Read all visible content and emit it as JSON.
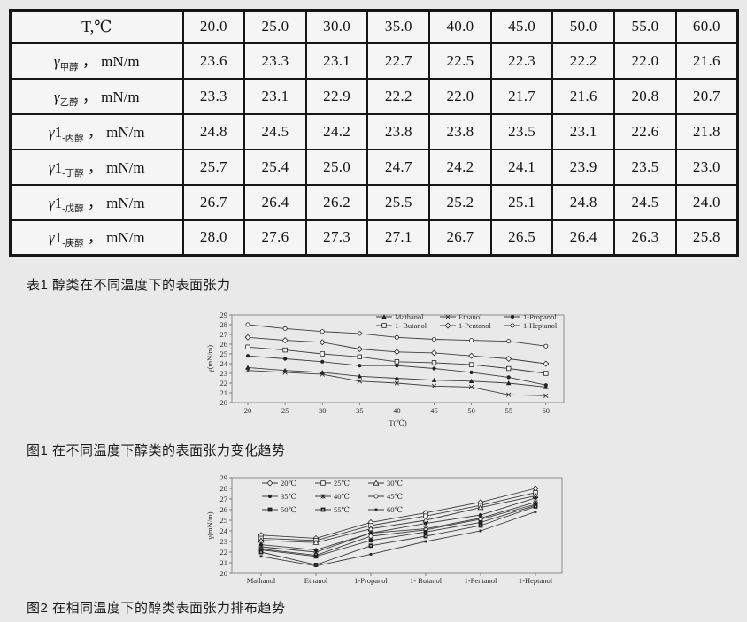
{
  "page": {
    "background": "#e9e9e9"
  },
  "table1": {
    "caption": "表1 醇类在不同温度下的表面张力",
    "header_label": "T,℃",
    "temperatures": [
      "20.0",
      "25.0",
      "30.0",
      "35.0",
      "40.0",
      "45.0",
      "50.0",
      "55.0",
      "60.0"
    ],
    "rows": [
      {
        "symbol": "γ",
        "sub": "甲醇",
        "separator": "，",
        "unit": "mN/m",
        "values": [
          "23.6",
          "23.3",
          "23.1",
          "22.7",
          "22.5",
          "22.3",
          "22.2",
          "22.0",
          "21.6"
        ]
      },
      {
        "symbol": "γ",
        "sub": "乙醇",
        "separator": "，",
        "unit": "mN/m",
        "values": [
          "23.3",
          "23.1",
          "22.9",
          "22.2",
          "22.0",
          "21.7",
          "21.6",
          "20.8",
          "20.7"
        ]
      },
      {
        "symbol": "γ1",
        "sub": "-丙醇",
        "separator": "，",
        "unit": "mN/m",
        "values": [
          "24.8",
          "24.5",
          "24.2",
          "23.8",
          "23.8",
          "23.5",
          "23.1",
          "22.6",
          "21.8"
        ]
      },
      {
        "symbol": "γ1",
        "sub": "-丁醇",
        "separator": "，",
        "unit": "mN/m",
        "values": [
          "25.7",
          "25.4",
          "25.0",
          "24.7",
          "24.2",
          "24.1",
          "23.9",
          "23.5",
          "23.0"
        ]
      },
      {
        "symbol": "γ1",
        "sub": "-戊醇",
        "separator": "，",
        "unit": "mN/m",
        "values": [
          "26.7",
          "26.4",
          "26.2",
          "25.5",
          "25.2",
          "25.1",
          "24.8",
          "24.5",
          "24.0"
        ]
      },
      {
        "symbol": "γ1",
        "sub": "-庚醇",
        "separator": "，",
        "unit": "mN/m",
        "values": [
          "28.0",
          "27.6",
          "27.3",
          "27.1",
          "26.7",
          "26.5",
          "26.4",
          "26.3",
          "25.8"
        ]
      }
    ]
  },
  "figure1": {
    "caption": "图1 在不同温度下醇类的表面张力变化趋势"
  },
  "figure2": {
    "caption": "图2 在相同温度下的醇类表面张力排布趋势"
  },
  "chart_data": [
    {
      "type": "line",
      "x": [
        20,
        25,
        30,
        35,
        40,
        45,
        50,
        55,
        60
      ],
      "xlabel": "T(℃)",
      "ylabel": "γ(mN/m)",
      "ylim": [
        20,
        29
      ],
      "ytick_step": 1,
      "grid": false,
      "legend_position": "top-center-2rows",
      "series": [
        {
          "name": "Mathanol",
          "marker": "triangle-filled",
          "values": [
            23.6,
            23.3,
            23.1,
            22.7,
            22.5,
            22.3,
            22.2,
            22.0,
            21.6
          ]
        },
        {
          "name": "Ethanol",
          "marker": "x",
          "values": [
            23.3,
            23.1,
            22.9,
            22.2,
            22.0,
            21.7,
            21.6,
            20.8,
            20.7
          ]
        },
        {
          "name": "1-Propanol",
          "marker": "circle-filled",
          "values": [
            24.8,
            24.5,
            24.2,
            23.8,
            23.8,
            23.5,
            23.1,
            22.6,
            21.8
          ]
        },
        {
          "name": "1- Butanol",
          "marker": "square-open",
          "values": [
            25.7,
            25.4,
            25.0,
            24.7,
            24.2,
            24.1,
            23.9,
            23.5,
            23.0
          ]
        },
        {
          "name": "1-Pentanol",
          "marker": "diamond-open",
          "values": [
            26.7,
            26.4,
            26.2,
            25.5,
            25.2,
            25.1,
            24.8,
            24.5,
            24.0
          ]
        },
        {
          "name": "1-Heptanol",
          "marker": "circle-open",
          "values": [
            28.0,
            27.6,
            27.3,
            27.1,
            26.7,
            26.5,
            26.4,
            26.3,
            25.8
          ]
        }
      ]
    },
    {
      "type": "line",
      "categories": [
        "Mathanol",
        "Ethanol",
        "1-Propanol",
        "1- Butanol",
        "1-Pentanol",
        "1-Heptanol"
      ],
      "xlabel": "",
      "ylabel": "γ(mN/m)",
      "ylim": [
        20,
        29
      ],
      "ytick_step": 1,
      "grid": false,
      "legend_position": "top-left-3rows",
      "series": [
        {
          "name": "20℃",
          "marker": "diamond-open",
          "values": [
            23.6,
            23.3,
            24.8,
            25.7,
            26.7,
            28.0
          ]
        },
        {
          "name": "25℃",
          "marker": "square-open",
          "values": [
            23.3,
            23.1,
            24.5,
            25.4,
            26.4,
            27.6
          ]
        },
        {
          "name": "30℃",
          "marker": "triangle-open",
          "values": [
            23.1,
            22.9,
            24.2,
            25.0,
            26.2,
            27.3
          ]
        },
        {
          "name": "35℃",
          "marker": "circle-filled",
          "values": [
            22.7,
            22.2,
            23.8,
            24.7,
            25.5,
            27.1
          ]
        },
        {
          "name": "40℃",
          "marker": "asterisk",
          "values": [
            22.5,
            22.0,
            23.8,
            24.2,
            25.2,
            26.7
          ]
        },
        {
          "name": "45℃",
          "marker": "circle-open",
          "values": [
            22.3,
            21.7,
            23.5,
            24.1,
            25.1,
            26.5
          ]
        },
        {
          "name": "50℃",
          "marker": "square-filled",
          "values": [
            22.2,
            21.6,
            23.1,
            23.9,
            24.8,
            26.4
          ]
        },
        {
          "name": "55℃",
          "marker": "square-filled-dot",
          "values": [
            22.0,
            20.8,
            22.6,
            23.5,
            24.5,
            26.3
          ]
        },
        {
          "name": "60℃",
          "marker": "dot",
          "values": [
            21.6,
            20.7,
            21.8,
            23.0,
            24.0,
            25.8
          ]
        }
      ]
    }
  ]
}
